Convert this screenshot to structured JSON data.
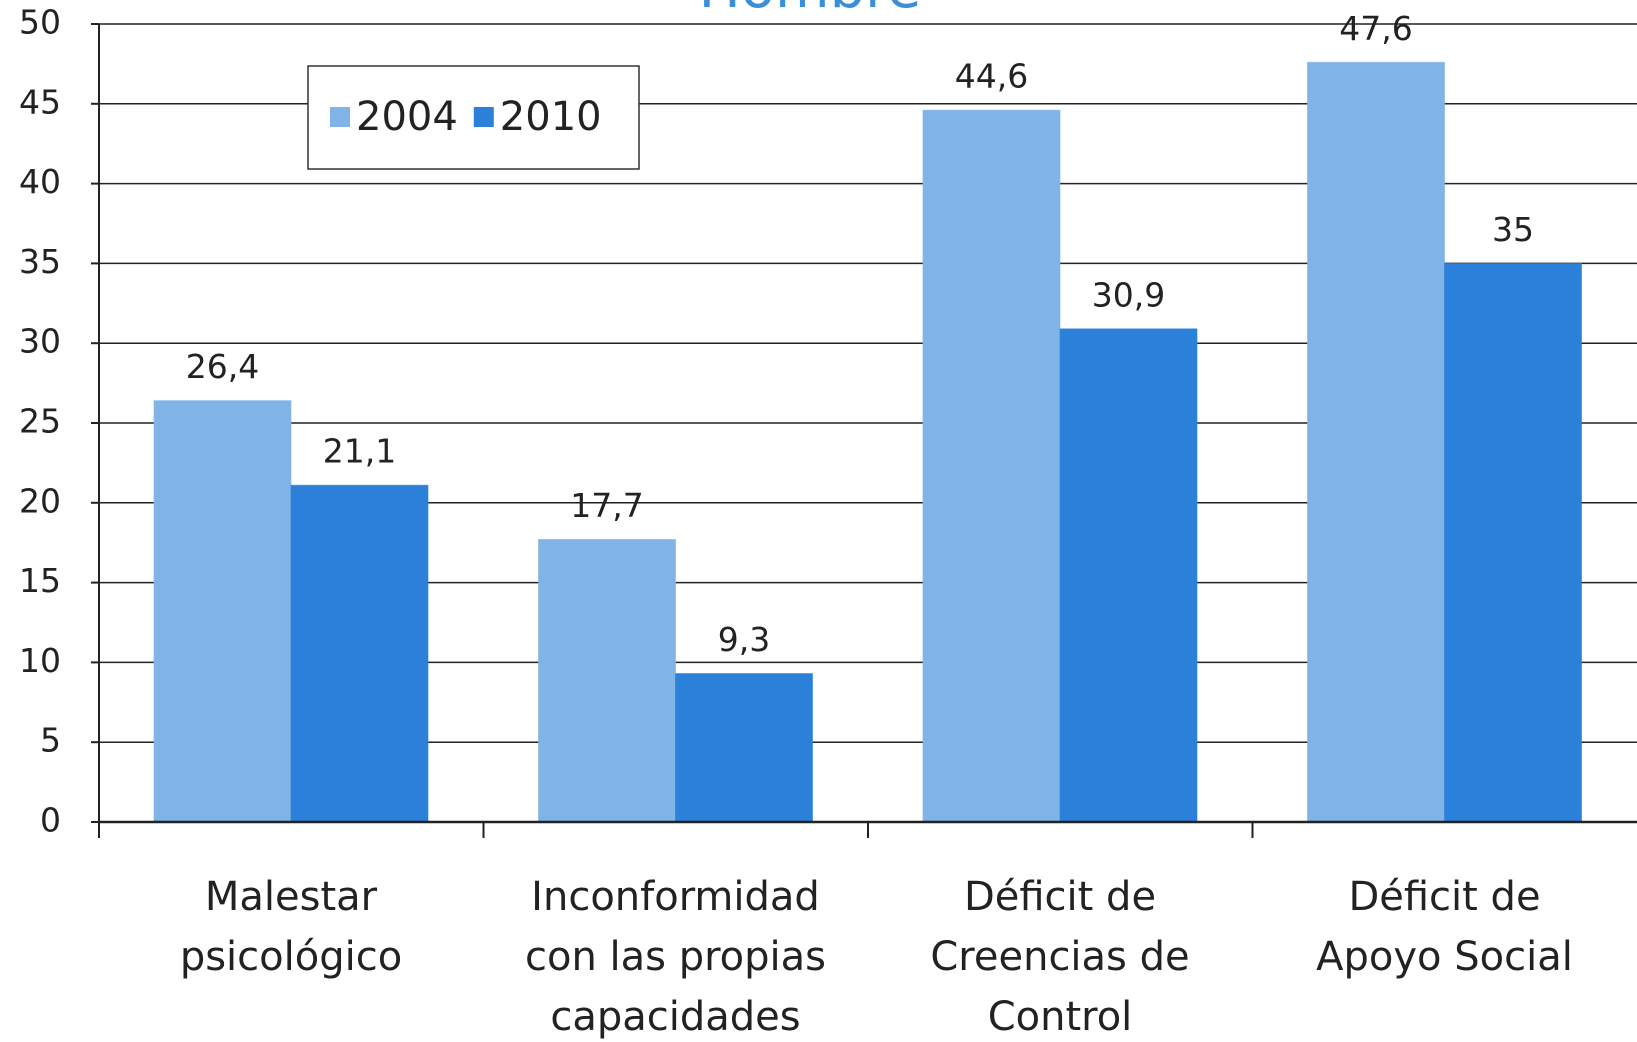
{
  "chart_data": {
    "type": "bar",
    "title": "Hombre",
    "categories": [
      [
        "Malestar",
        "psicológico"
      ],
      [
        "Inconformidad",
        "con las propias",
        "capacidades"
      ],
      [
        "Déficit de",
        "Creencias de",
        "Control"
      ],
      [
        "Déficit de",
        "Apoyo Social"
      ]
    ],
    "series": [
      {
        "name": "2004",
        "color": "#80b3e6",
        "values": [
          26.4,
          17.7,
          44.6,
          47.6
        ],
        "value_labels": [
          "26,4",
          "17,7",
          "44,6",
          "47,6"
        ]
      },
      {
        "name": "2010",
        "color": "#2b80d9",
        "values": [
          21.1,
          9.3,
          30.9,
          35
        ],
        "value_labels": [
          "21,1",
          "9,3",
          "30,9",
          "35"
        ]
      }
    ],
    "ylim": [
      0,
      50
    ],
    "yticks": [
      0,
      5,
      10,
      15,
      20,
      25,
      30,
      35,
      40,
      45,
      50
    ],
    "grid": true,
    "legend": "upper left"
  }
}
